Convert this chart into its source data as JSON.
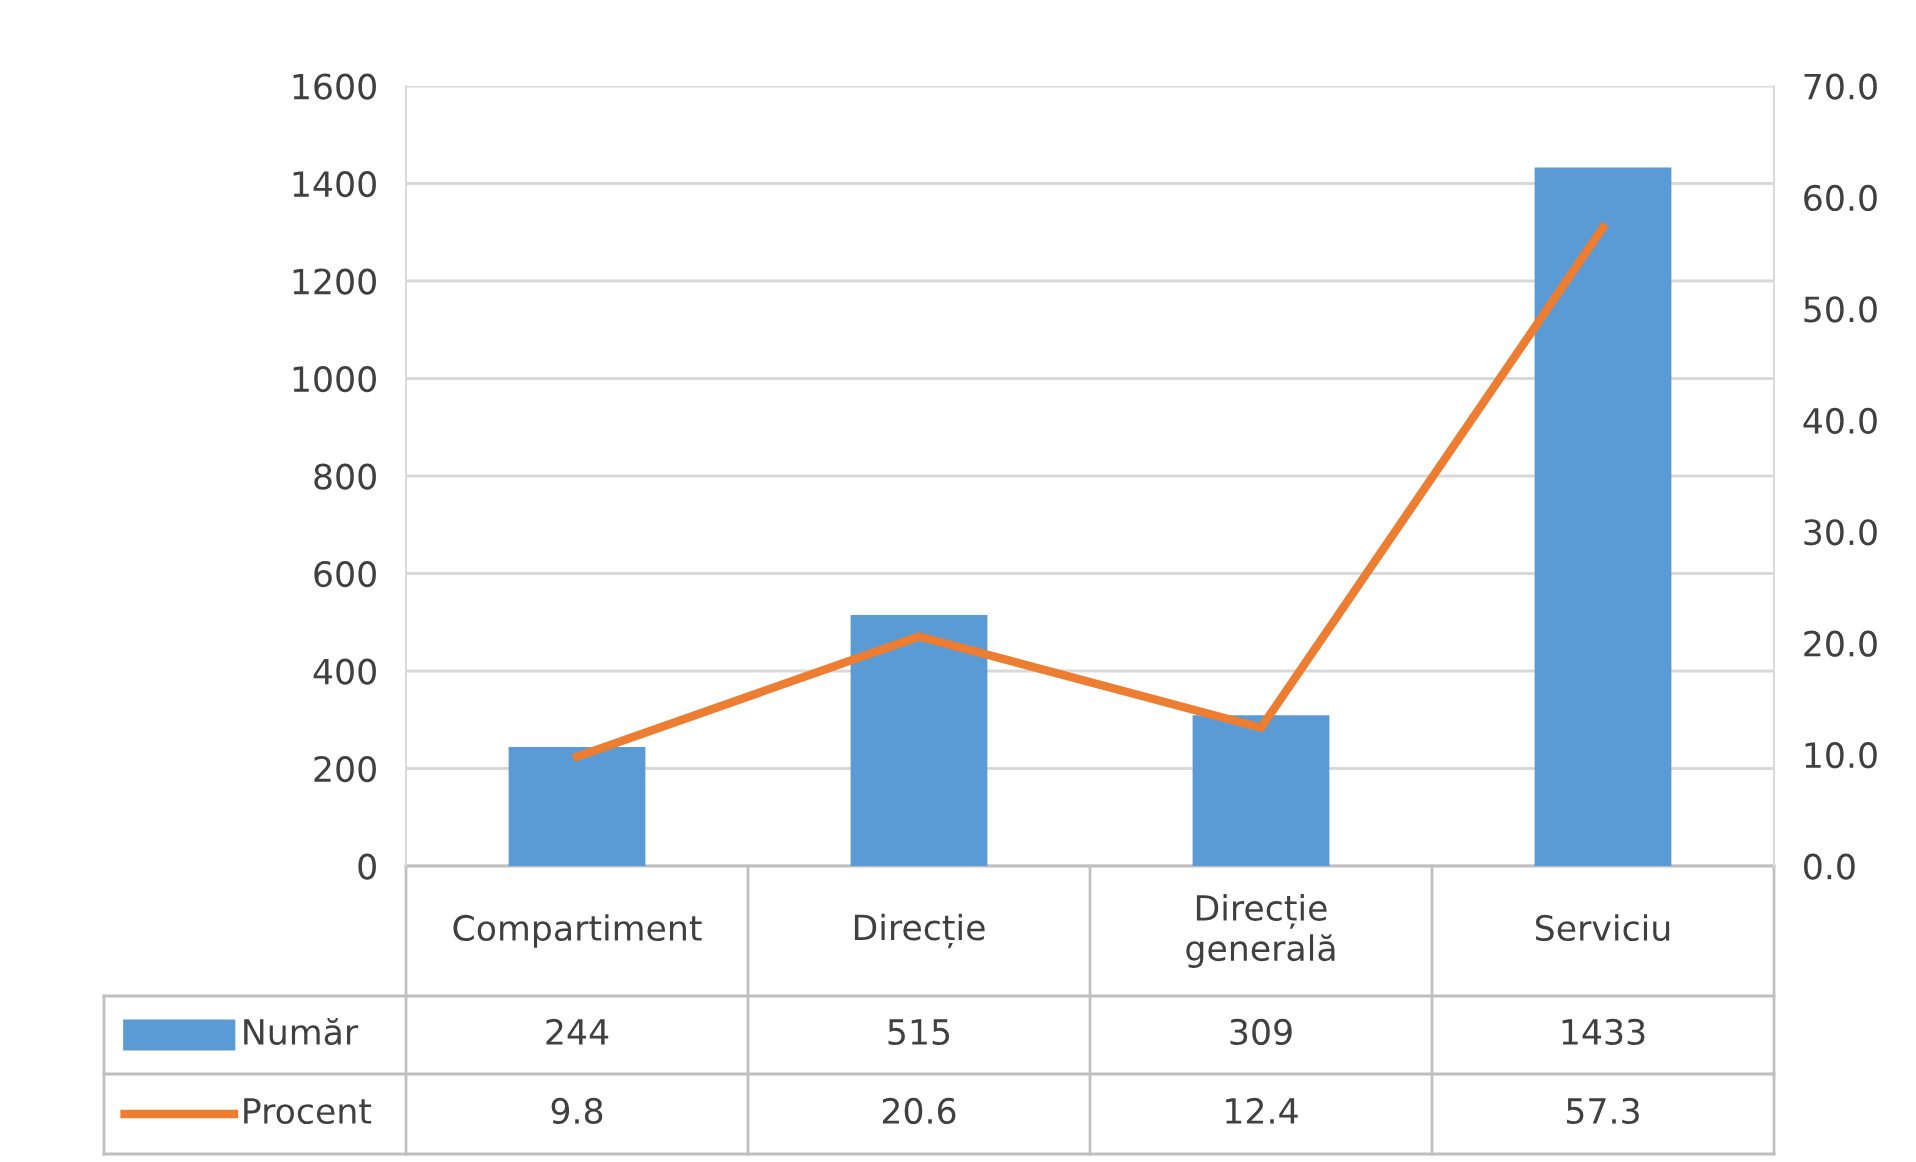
{
  "chart_data": {
    "type": "bar",
    "categories": [
      "Compartiment",
      "Direcție",
      "Direcție\ngenerală",
      "Serviciu"
    ],
    "series": [
      {
        "name": "Număr",
        "color": "#5b9bd5",
        "values": [
          244,
          515,
          309,
          1433
        ]
      },
      {
        "name": "Procent",
        "type": "line",
        "axis": "y2",
        "color": "#ed7d31",
        "values": [
          9.8,
          20.6,
          12.4,
          57.3
        ]
      }
    ],
    "ylim": [
      0,
      1600
    ],
    "yticks": [
      0,
      200,
      400,
      600,
      800,
      1000,
      1200,
      1400,
      1600
    ],
    "y2lim": [
      0,
      70
    ],
    "y2ticks": [
      {
        "value": 0,
        "label": "0.0"
      },
      {
        "value": 10,
        "label": "10.0"
      },
      {
        "value": 20,
        "label": "20.0"
      },
      {
        "value": 30,
        "label": "30.0"
      },
      {
        "value": 40,
        "label": "40.0"
      },
      {
        "value": 50,
        "label": "50.0"
      },
      {
        "value": 60,
        "label": "60.0"
      },
      {
        "value": 70,
        "label": "70.0"
      }
    ],
    "grid": "y",
    "legend": "bottom",
    "data_labels": true,
    "marker": "none",
    "line_style": "solid"
  }
}
